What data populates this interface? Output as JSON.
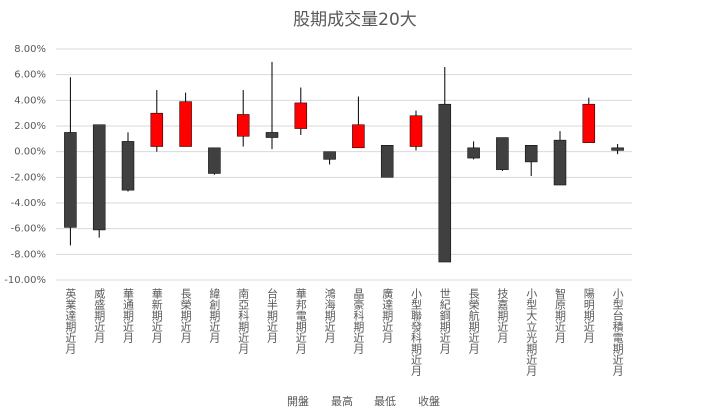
{
  "chart_data": {
    "type": "candlestick",
    "title": "股期成交量20大",
    "categories": [
      "英業達期近月",
      "威盛期近月",
      "華通期近月",
      "華新期近月",
      "長榮期近月",
      "緯創期近月",
      "南亞科期近月",
      "台半期近月",
      "華邦電期近月",
      "鴻海期近月",
      "晶豪科期近月",
      "廣達期近月",
      "小型聯發科期近月",
      "世紀鋼期近月",
      "長榮航期近月",
      "技嘉期近月",
      "小型大立光期近月",
      "智原期近月",
      "陽明期近月",
      "小型台積電期近月"
    ],
    "series": [
      {
        "name": "開盤",
        "values": [
          1.5,
          2.1,
          0.8,
          0.4,
          0.4,
          0.3,
          1.2,
          1.5,
          1.8,
          0.0,
          0.3,
          0.5,
          0.4,
          3.7,
          0.3,
          1.1,
          0.5,
          0.9,
          0.7,
          0.3
        ]
      },
      {
        "name": "最高",
        "values": [
          5.8,
          2.1,
          1.5,
          4.8,
          4.6,
          0.3,
          4.8,
          7.0,
          5.0,
          0.0,
          4.3,
          0.5,
          3.2,
          6.6,
          0.8,
          1.1,
          0.5,
          1.6,
          4.2,
          0.6
        ]
      },
      {
        "name": "最低",
        "values": [
          -7.3,
          -6.7,
          -3.1,
          0.0,
          0.4,
          -1.8,
          0.4,
          0.2,
          1.3,
          -1.0,
          0.3,
          -2.0,
          0.1,
          -8.6,
          -0.6,
          -1.5,
          -1.9,
          -2.6,
          0.7,
          -0.2
        ]
      },
      {
        "name": "收盤",
        "values": [
          -5.9,
          -6.1,
          -3.0,
          3.0,
          3.9,
          -1.7,
          2.9,
          1.1,
          3.8,
          -0.6,
          2.1,
          -2.0,
          2.8,
          -8.6,
          -0.5,
          -1.4,
          -0.8,
          -2.6,
          3.7,
          0.1
        ]
      }
    ],
    "up_color": "#ff0000",
    "down_color": "#404040",
    "ylim": [
      -10,
      8
    ],
    "yticks": [
      {
        "value": -10,
        "label": "-10.00%"
      },
      {
        "value": -8,
        "label": "-8.00%"
      },
      {
        "value": -6,
        "label": "-6.00%"
      },
      {
        "value": -4,
        "label": "-4.00%"
      },
      {
        "value": -2,
        "label": "-2.00%"
      },
      {
        "value": 0,
        "label": "0.00%"
      },
      {
        "value": 2,
        "label": "2.00%"
      },
      {
        "value": 4,
        "label": "4.00%"
      },
      {
        "value": 6,
        "label": "6.00%"
      },
      {
        "value": 8,
        "label": "8.00%"
      }
    ],
    "grid": true
  }
}
